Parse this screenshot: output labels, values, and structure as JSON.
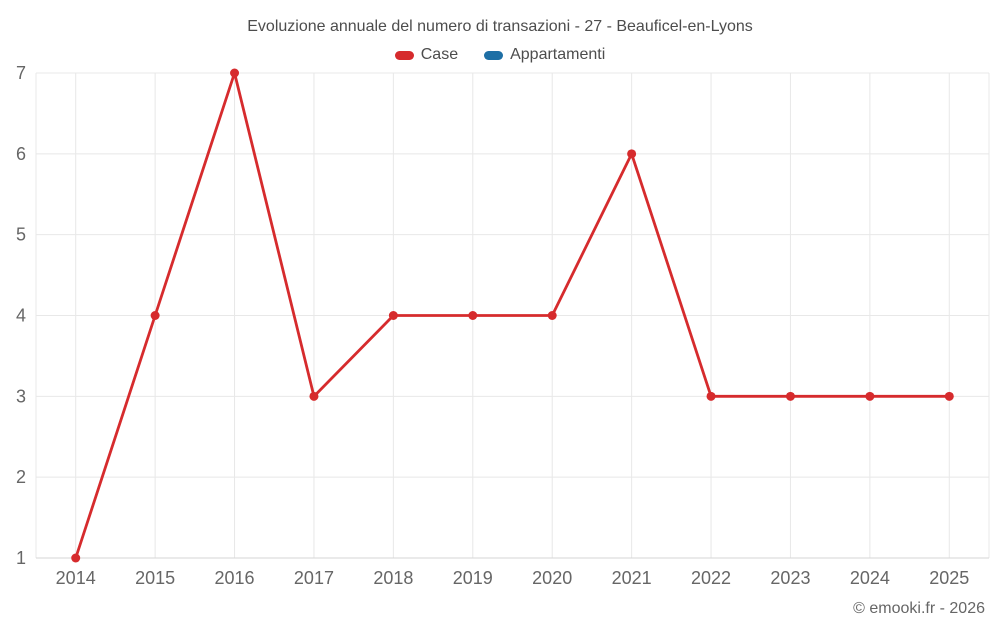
{
  "chart_data": {
    "type": "line",
    "title": "Evoluzione annuale del numero di transazioni - 27 - Beauficel-en-Lyons",
    "categories": [
      "2014",
      "2015",
      "2016",
      "2017",
      "2018",
      "2019",
      "2020",
      "2021",
      "2022",
      "2023",
      "2024",
      "2025"
    ],
    "series": [
      {
        "name": "Case",
        "color": "#d62b2d",
        "values": [
          1,
          4,
          7,
          3,
          4,
          4,
          4,
          6,
          3,
          3,
          3,
          3
        ]
      },
      {
        "name": "Appartamenti",
        "color": "#1e6fa5",
        "values": []
      }
    ],
    "xlabel": "",
    "ylabel": "",
    "ylim": [
      1,
      7
    ],
    "yticks": [
      1,
      2,
      3,
      4,
      5,
      6,
      7
    ],
    "grid": true,
    "legend_position": "top"
  },
  "footer": {
    "copyright": "© emooki.fr - 2026"
  },
  "theme": {
    "background": "#ffffff",
    "grid_color": "#e8e8e8",
    "axis_color": "#d6d6d6",
    "tick_label_color": "#666666",
    "title_color": "#4d4d4d"
  }
}
